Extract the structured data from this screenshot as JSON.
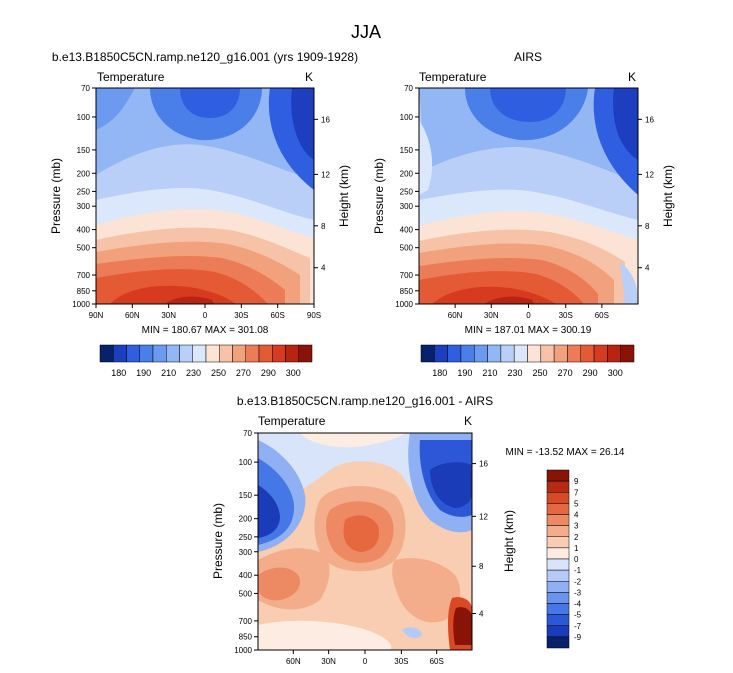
{
  "figure": {
    "title": "JJA"
  },
  "colors": {
    "abs_scale": [
      "#08216b",
      "#1d3fbf",
      "#2f5fe0",
      "#4a7ee8",
      "#6c9af0",
      "#93b6f4",
      "#b9cff7",
      "#dbe7fa",
      "#fbe4d6",
      "#f7c3a8",
      "#f2a17d",
      "#ec7c57",
      "#e35a35",
      "#d63b1f",
      "#b92410",
      "#8a1207"
    ],
    "diff_scale": [
      "#08216b",
      "#1a3cb8",
      "#2c58d8",
      "#4677e6",
      "#6993ee",
      "#8fb0f3",
      "#b4cbf7",
      "#d7e4fa",
      "#fdece2",
      "#f9cdb2",
      "#f4ad8a",
      "#ee8a63",
      "#e6683f",
      "#d84a24",
      "#b52a12",
      "#891307"
    ]
  },
  "chart_data": [
    {
      "type": "heatmap",
      "id": "model",
      "title": "b.e13.B1850C5CN.ramp.ne120_g16.001 (yrs 1909-1928)",
      "subtitle_left": "Temperature",
      "subtitle_right": "K",
      "ylabel": "Pressure (mb)",
      "ylabel_right": "Height (km)",
      "pressure_ticks": [
        "70",
        "100",
        "150",
        "200",
        "250",
        "300",
        "400",
        "500",
        "700",
        "850",
        "1000"
      ],
      "height_ticks": [
        "4",
        "8",
        "12",
        "16"
      ],
      "lat_ticks": [
        "90N",
        "60N",
        "30N",
        "0",
        "30S",
        "60S",
        "90S"
      ],
      "minmax": "MIN = 180.67   MAX = 301.08",
      "colorbar_labels": [
        "180",
        "190",
        "210",
        "230",
        "250",
        "270",
        "290",
        "300"
      ]
    },
    {
      "type": "heatmap",
      "id": "obs",
      "title": "AIRS",
      "subtitle_left": "Temperature",
      "subtitle_right": "K",
      "ylabel": "Pressure (mb)",
      "ylabel_right": "Height (km)",
      "pressure_ticks": [
        "70",
        "100",
        "150",
        "200",
        "250",
        "300",
        "400",
        "500",
        "700",
        "850",
        "1000"
      ],
      "height_ticks": [
        "4",
        "8",
        "12",
        "16"
      ],
      "lat_ticks": [
        "60N",
        "30N",
        "0",
        "30S",
        "60S"
      ],
      "minmax": "MIN = 187.01   MAX = 300.19",
      "colorbar_labels": [
        "180",
        "190",
        "210",
        "230",
        "250",
        "270",
        "290",
        "300"
      ]
    },
    {
      "type": "heatmap",
      "id": "diff",
      "title": "b.e13.B1850C5CN.ramp.ne120_g16.001 - AIRS",
      "subtitle_left": "Temperature",
      "subtitle_right": "K",
      "ylabel": "Pressure (mb)",
      "ylabel_right": "Height (km)",
      "pressure_ticks": [
        "70",
        "100",
        "150",
        "200",
        "250",
        "300",
        "400",
        "500",
        "700",
        "850",
        "1000"
      ],
      "height_ticks": [
        "4",
        "8",
        "12",
        "16"
      ],
      "lat_ticks": [
        "60N",
        "30N",
        "0",
        "30S",
        "60S"
      ],
      "minmax": "MIN = -13.52   MAX =  26.14",
      "colorbar_labels": [
        "9",
        "7",
        "5",
        "4",
        "3",
        "2",
        "1",
        "0",
        "-1",
        "-2",
        "-3",
        "-4",
        "-5",
        "-7",
        "-9"
      ]
    }
  ]
}
